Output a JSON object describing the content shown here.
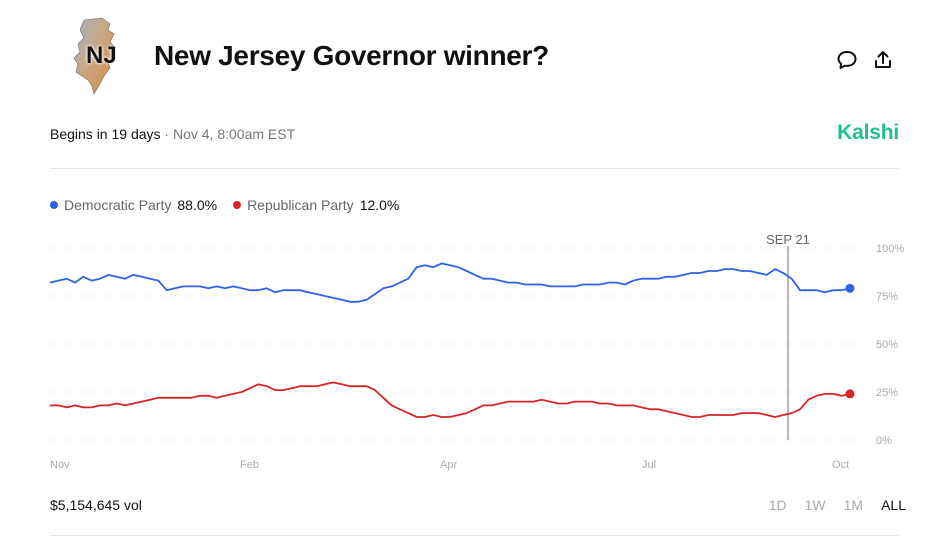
{
  "header": {
    "logo_text": "NJ",
    "title": "New Jersey Governor winner?"
  },
  "meta": {
    "begins": "Begins in 19 days",
    "separator": "·",
    "date": "Nov 4, 8:00am EST",
    "brand": "Kalshi"
  },
  "legend": [
    {
      "name": "Democratic Party",
      "value": "88.0%",
      "color": "#2f62e6"
    },
    {
      "name": "Republican Party",
      "value": "12.0%",
      "color": "#d42626"
    }
  ],
  "chart_data": {
    "type": "line",
    "x_ticks": [
      "Nov",
      "Feb",
      "Apr",
      "Jul",
      "Oct"
    ],
    "y_ticks": [
      "100%",
      "75%",
      "50%",
      "25%",
      "0%"
    ],
    "ylim": [
      0,
      100
    ],
    "marker_label": "SEP 21",
    "grid": true,
    "series": [
      {
        "name": "Democratic Party",
        "color": "#2f62e6",
        "values": [
          82,
          83,
          84,
          82,
          85,
          83,
          84,
          86,
          85,
          84,
          86,
          85,
          84,
          83,
          78,
          79,
          80,
          80,
          80,
          79,
          80,
          79,
          80,
          79,
          78,
          78,
          79,
          77,
          78,
          78,
          78,
          77,
          76,
          75,
          74,
          73,
          72,
          72,
          73,
          76,
          79,
          80,
          82,
          84,
          90,
          91,
          90,
          92,
          91,
          90,
          88,
          86,
          84,
          84,
          83,
          82,
          82,
          81,
          81,
          81,
          80,
          80,
          80,
          80,
          81,
          81,
          81,
          82,
          82,
          81,
          83,
          84,
          84,
          84,
          85,
          85,
          86,
          87,
          87,
          88,
          88,
          89,
          89,
          88,
          88,
          87,
          86,
          89,
          87,
          84,
          78,
          78,
          78,
          77,
          78,
          78,
          79
        ]
      },
      {
        "name": "Republican Party",
        "color": "#d42626",
        "values": [
          18,
          18,
          17,
          18,
          17,
          17,
          18,
          18,
          19,
          18,
          19,
          20,
          21,
          22,
          22,
          22,
          22,
          22,
          23,
          23,
          22,
          23,
          24,
          25,
          27,
          29,
          28,
          26,
          26,
          27,
          28,
          28,
          28,
          29,
          30,
          29,
          28,
          28,
          28,
          26,
          22,
          18,
          16,
          14,
          12,
          12,
          13,
          12,
          12,
          13,
          14,
          16,
          18,
          18,
          19,
          20,
          20,
          20,
          20,
          21,
          20,
          19,
          19,
          20,
          20,
          20,
          19,
          19,
          18,
          18,
          18,
          17,
          16,
          16,
          15,
          14,
          13,
          12,
          12,
          13,
          13,
          13,
          13,
          14,
          14,
          14,
          13,
          12,
          13,
          14,
          16,
          21,
          23,
          24,
          24,
          23,
          24
        ]
      }
    ]
  },
  "footer": {
    "volume": "$5,154,645 vol",
    "ranges": [
      "1D",
      "1W",
      "1M",
      "ALL"
    ],
    "active_range": "ALL"
  }
}
